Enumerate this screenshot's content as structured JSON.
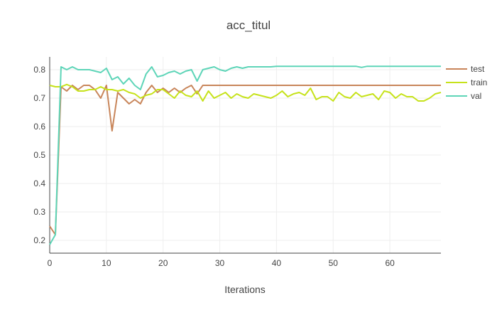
{
  "chart_data": {
    "type": "line",
    "title": "acc_titul",
    "xlabel": "Iterations",
    "ylabel": "",
    "xlim": [
      0,
      69
    ],
    "ylim": [
      0.155,
      0.845
    ],
    "xticks": [
      0,
      10,
      20,
      30,
      40,
      50,
      60
    ],
    "yticks": [
      0.2,
      0.3,
      0.4,
      0.5,
      0.6,
      0.7,
      0.8
    ],
    "grid": true,
    "legend_position": "right",
    "series": [
      {
        "name": "test",
        "color": "#c8855a",
        "x": [
          0,
          1,
          2,
          3,
          4,
          5,
          6,
          7,
          8,
          9,
          10,
          11,
          12,
          13,
          14,
          15,
          16,
          17,
          18,
          19,
          20,
          21,
          22,
          23,
          24,
          25,
          26,
          27,
          28,
          29,
          30,
          31,
          32,
          33,
          34,
          35,
          36,
          37,
          38,
          39,
          40,
          41,
          42,
          43,
          44,
          45,
          46,
          47,
          48,
          49,
          50,
          51,
          52,
          53,
          54,
          55,
          56,
          57,
          58,
          59,
          60,
          61,
          62,
          63,
          64,
          65,
          66,
          67,
          68,
          69
        ],
        "y": [
          0.25,
          0.22,
          0.74,
          0.725,
          0.745,
          0.73,
          0.745,
          0.745,
          0.73,
          0.7,
          0.745,
          0.585,
          0.72,
          0.7,
          0.68,
          0.695,
          0.68,
          0.72,
          0.745,
          0.72,
          0.735,
          0.72,
          0.735,
          0.72,
          0.735,
          0.745,
          0.715,
          0.745,
          0.745,
          0.745,
          0.745,
          0.745,
          0.745,
          0.745,
          0.745,
          0.745,
          0.745,
          0.745,
          0.745,
          0.745,
          0.745,
          0.745,
          0.745,
          0.745,
          0.745,
          0.745,
          0.745,
          0.745,
          0.745,
          0.745,
          0.745,
          0.745,
          0.745,
          0.745,
          0.745,
          0.745,
          0.745,
          0.745,
          0.745,
          0.745,
          0.745,
          0.745,
          0.745,
          0.745,
          0.745,
          0.745,
          0.745,
          0.745,
          0.745,
          0.745
        ]
      },
      {
        "name": "train",
        "color": "#c6e21a",
        "x": [
          0,
          1,
          2,
          3,
          4,
          5,
          6,
          7,
          8,
          9,
          10,
          11,
          12,
          13,
          14,
          15,
          16,
          17,
          18,
          19,
          20,
          21,
          22,
          23,
          24,
          25,
          26,
          27,
          28,
          29,
          30,
          31,
          32,
          33,
          34,
          35,
          36,
          37,
          38,
          39,
          40,
          41,
          42,
          43,
          44,
          45,
          46,
          47,
          48,
          49,
          50,
          51,
          52,
          53,
          54,
          55,
          56,
          57,
          58,
          59,
          60,
          61,
          62,
          63,
          64,
          65,
          66,
          67,
          68,
          69
        ],
        "y": [
          0.745,
          0.74,
          0.74,
          0.748,
          0.74,
          0.725,
          0.725,
          0.73,
          0.73,
          0.74,
          0.73,
          0.73,
          0.725,
          0.73,
          0.72,
          0.715,
          0.7,
          0.71,
          0.715,
          0.73,
          0.73,
          0.715,
          0.7,
          0.725,
          0.71,
          0.705,
          0.725,
          0.69,
          0.725,
          0.7,
          0.71,
          0.72,
          0.7,
          0.715,
          0.705,
          0.7,
          0.715,
          0.71,
          0.705,
          0.7,
          0.71,
          0.725,
          0.705,
          0.715,
          0.72,
          0.71,
          0.735,
          0.695,
          0.705,
          0.705,
          0.69,
          0.72,
          0.705,
          0.7,
          0.72,
          0.705,
          0.71,
          0.715,
          0.695,
          0.725,
          0.72,
          0.7,
          0.715,
          0.705,
          0.705,
          0.69,
          0.69,
          0.7,
          0.715,
          0.72
        ]
      },
      {
        "name": "val",
        "color": "#5ed5b8",
        "x": [
          0,
          1,
          2,
          3,
          4,
          5,
          6,
          7,
          8,
          9,
          10,
          11,
          12,
          13,
          14,
          15,
          16,
          17,
          18,
          19,
          20,
          21,
          22,
          23,
          24,
          25,
          26,
          27,
          28,
          29,
          30,
          31,
          32,
          33,
          34,
          35,
          36,
          37,
          38,
          39,
          40,
          41,
          42,
          43,
          44,
          45,
          46,
          47,
          48,
          49,
          50,
          51,
          52,
          53,
          54,
          55,
          56,
          57,
          58,
          59,
          60,
          61,
          62,
          63,
          64,
          65,
          66,
          67,
          68,
          69
        ],
        "y": [
          0.185,
          0.22,
          0.81,
          0.8,
          0.81,
          0.8,
          0.8,
          0.8,
          0.795,
          0.79,
          0.805,
          0.765,
          0.775,
          0.75,
          0.77,
          0.745,
          0.73,
          0.785,
          0.81,
          0.775,
          0.78,
          0.79,
          0.795,
          0.785,
          0.795,
          0.8,
          0.76,
          0.8,
          0.805,
          0.81,
          0.8,
          0.795,
          0.805,
          0.81,
          0.805,
          0.81,
          0.81,
          0.81,
          0.81,
          0.81,
          0.812,
          0.812,
          0.812,
          0.812,
          0.812,
          0.812,
          0.812,
          0.812,
          0.812,
          0.812,
          0.812,
          0.812,
          0.812,
          0.812,
          0.812,
          0.808,
          0.812,
          0.812,
          0.812,
          0.812,
          0.812,
          0.812,
          0.812,
          0.812,
          0.812,
          0.812,
          0.812,
          0.812,
          0.812,
          0.812
        ]
      }
    ]
  }
}
